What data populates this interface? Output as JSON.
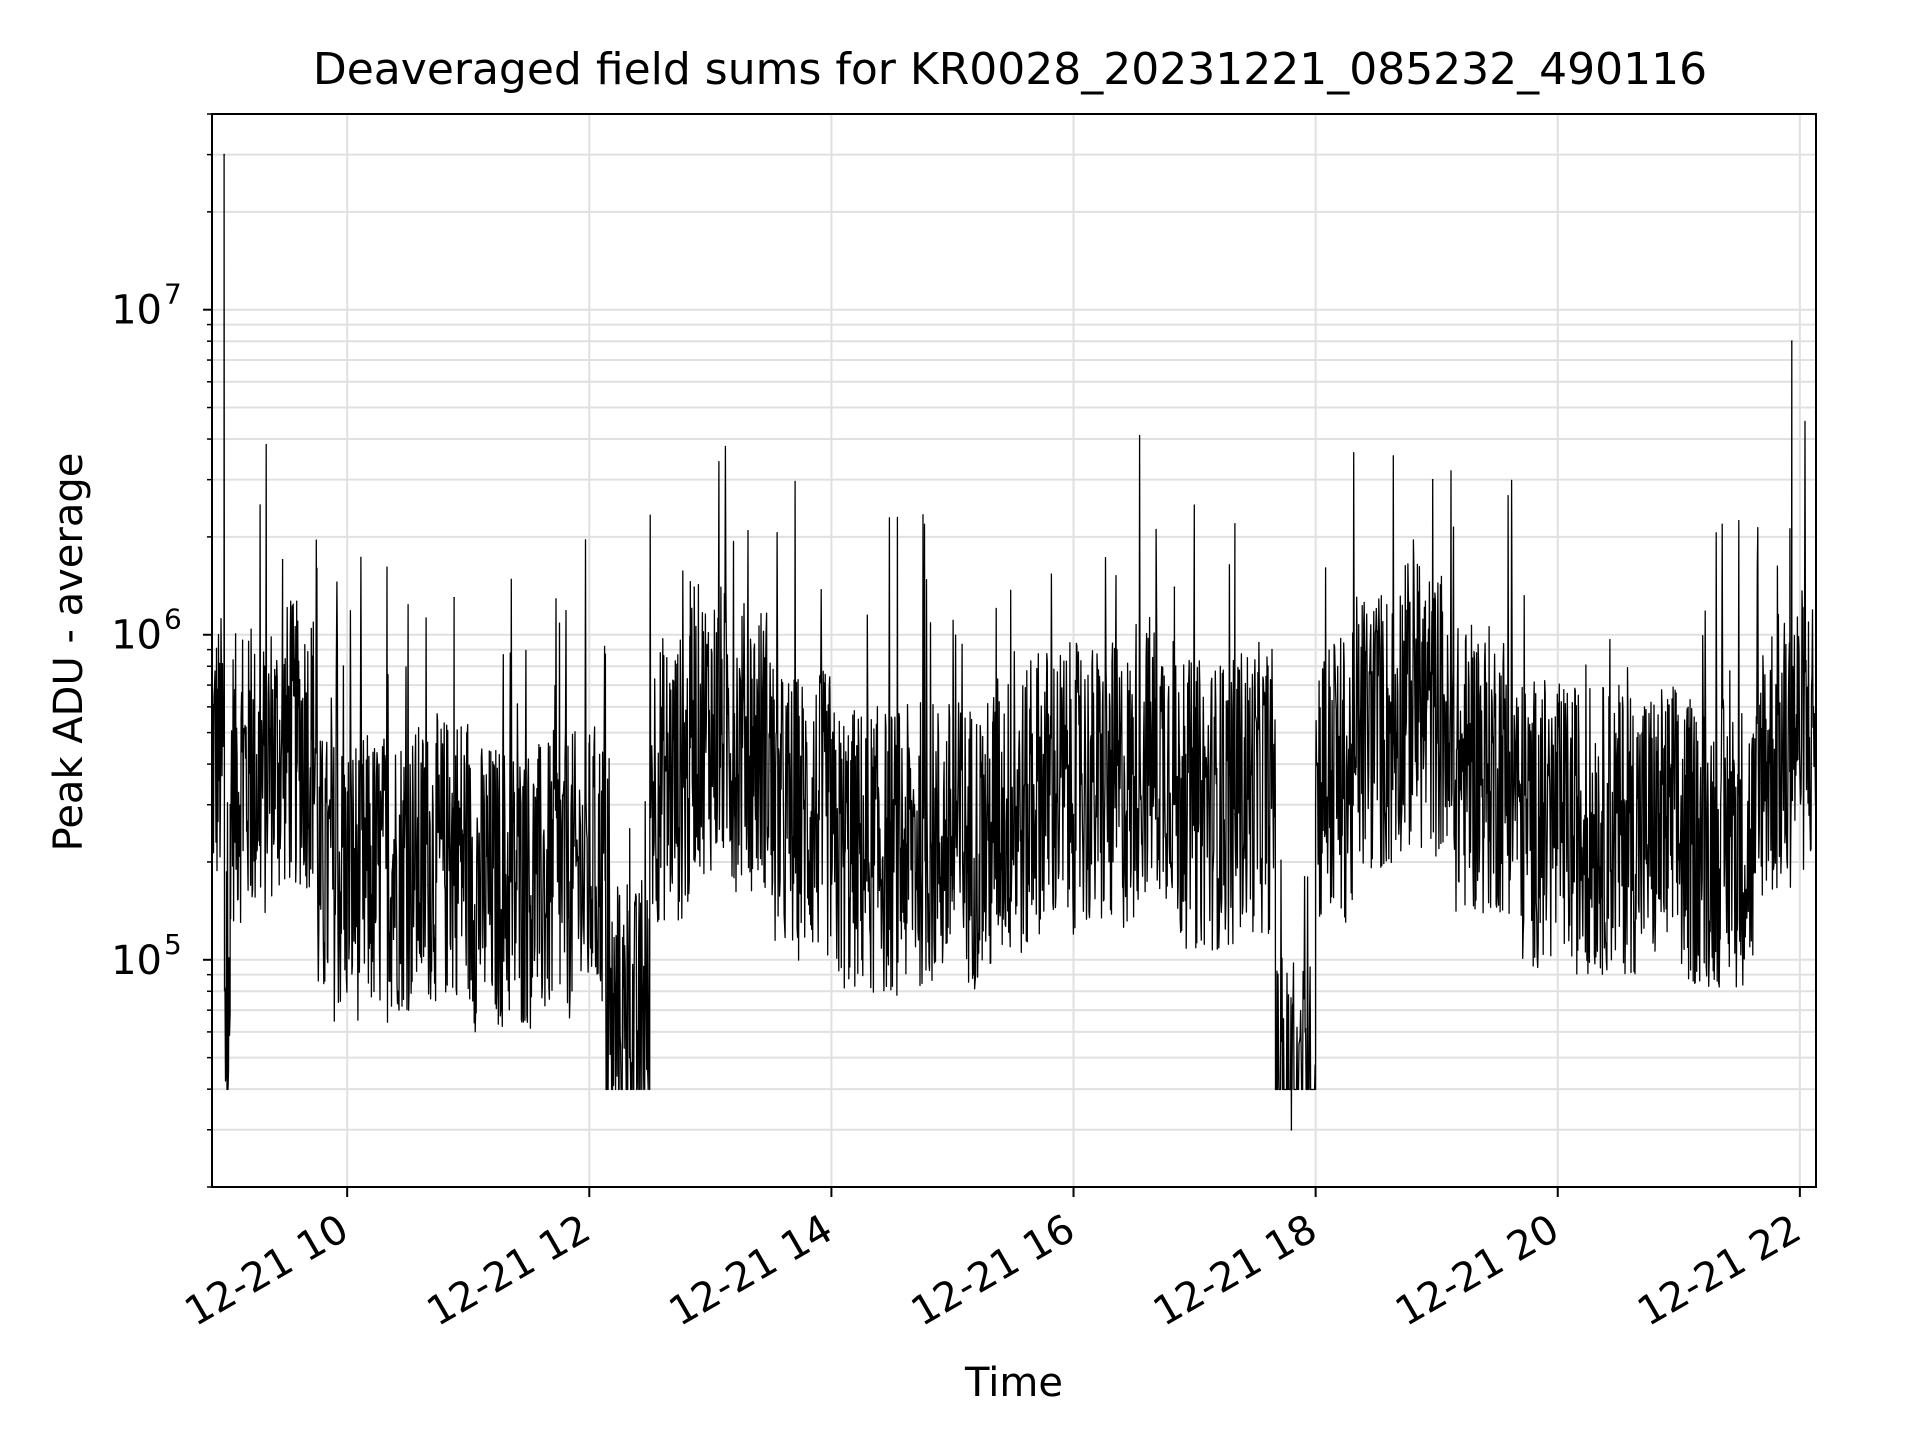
{
  "chart_data": {
    "type": "line",
    "title": "Deaveraged field sums for KR0028_20231221_085232_490116",
    "xlabel": "Time",
    "ylabel": "Peak ADU - average",
    "x_range": [
      "2023-12-21T08:53",
      "2023-12-21T22:08"
    ],
    "ylim": [
      20000,
      40000000
    ],
    "y_scale": "log",
    "grid": true,
    "line_color": "#000000",
    "grid_color": "#e0e0e0",
    "x_tick_labels": [
      "12-21 10",
      "12-21 12",
      "12-21 14",
      "12-21 16",
      "12-21 18",
      "12-21 20",
      "12-21 22"
    ],
    "x_tick_times": [
      "2023-12-21T10:00",
      "2023-12-21T12:00",
      "2023-12-21T14:00",
      "2023-12-21T16:00",
      "2023-12-21T18:00",
      "2023-12-21T20:00",
      "2023-12-21T22:00"
    ],
    "y_tick_values": [
      100000,
      1000000,
      10000000
    ],
    "y_tick_bases": [
      "10",
      "10",
      "10"
    ],
    "y_tick_exponents": [
      "5",
      "6",
      "7"
    ],
    "series": [
      {
        "x": [
          "2023-12-21T08:53",
          "2023-12-21T08:59",
          "2023-12-21T09:00",
          "2023-12-21T09:02",
          "2023-12-21T09:20",
          "2023-12-21T09:28",
          "2023-12-21T09:35",
          "2023-12-21T09:45",
          "2023-12-21T10:00",
          "2023-12-21T10:20",
          "2023-12-21T10:40",
          "2023-12-21T10:53",
          "2023-12-21T11:00",
          "2023-12-21T11:20",
          "2023-12-21T11:40",
          "2023-12-21T12:00",
          "2023-12-21T12:08",
          "2023-12-21T12:20",
          "2023-12-21T12:30",
          "2023-12-21T12:50",
          "2023-12-21T12:52",
          "2023-12-21T13:10",
          "2023-12-21T13:30",
          "2023-12-21T14:00",
          "2023-12-21T14:20",
          "2023-12-21T14:40",
          "2023-12-21T15:00",
          "2023-12-21T15:20",
          "2023-12-21T15:40",
          "2023-12-21T16:00",
          "2023-12-21T16:30",
          "2023-12-21T16:50",
          "2023-12-21T17:00",
          "2023-12-21T17:20",
          "2023-12-21T17:40",
          "2023-12-21T17:48",
          "2023-12-21T18:00",
          "2023-12-21T18:20",
          "2023-12-21T18:40",
          "2023-12-21T18:58",
          "2023-12-21T19:05",
          "2023-12-21T19:20",
          "2023-12-21T19:40",
          "2023-12-21T20:00",
          "2023-12-21T20:20",
          "2023-12-21T20:40",
          "2023-12-21T21:00",
          "2023-12-21T21:20",
          "2023-12-21T21:40",
          "2023-12-21T21:55",
          "2023-12-21T21:56",
          "2023-12-21T22:08"
        ],
        "y": [
          350000,
          30000000,
          45000,
          300000,
          350000,
          1700000,
          380000,
          1600000,
          150000,
          160000,
          170000,
          1300000,
          180000,
          140000,
          150000,
          160000,
          870000,
          50000,
          300000,
          450000,
          1400000,
          430000,
          380000,
          230000,
          180000,
          190000,
          190000,
          230000,
          300000,
          280000,
          350000,
          1400000,
          250000,
          280000,
          330000,
          30000,
          300000,
          420000,
          500000,
          3000000,
          480000,
          320000,
          400000,
          220000,
          210000,
          210000,
          210000,
          190000,
          350000,
          380000,
          8000000,
          420000
        ]
      }
    ]
  }
}
